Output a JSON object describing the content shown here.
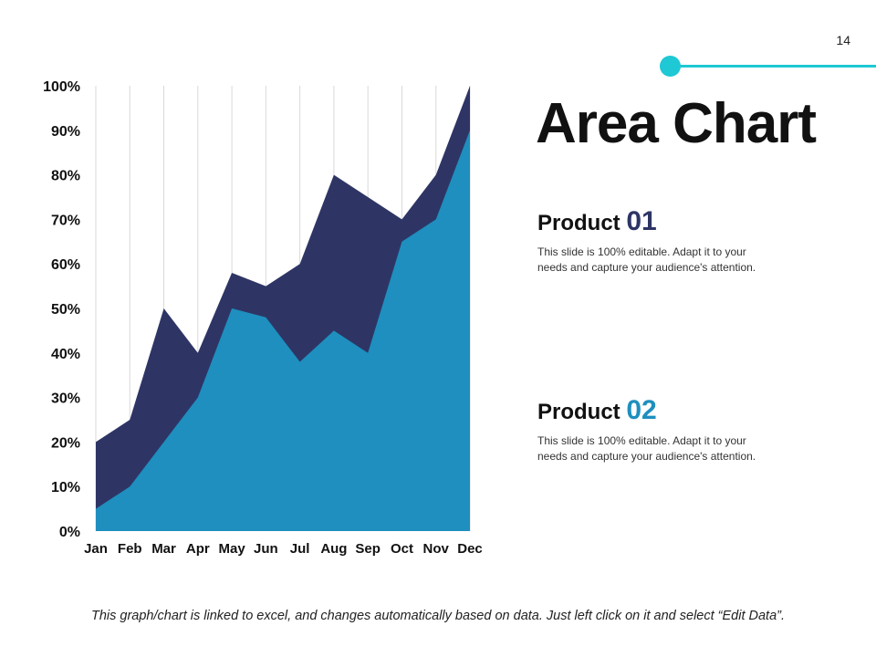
{
  "slide": {
    "page_number": "14"
  },
  "header": {
    "title": "Area Chart"
  },
  "products": [
    {
      "label": "Product",
      "number": "01",
      "description": "This slide is 100% editable. Adapt it to your needs and capture your audience's attention."
    },
    {
      "label": "Product",
      "number": "02",
      "description": "This slide is 100% editable. Adapt it to your needs and capture your audience's attention."
    }
  ],
  "footnote": "This graph/chart is linked to excel, and changes automatically based on data. Just left click on it and select “Edit Data”.",
  "colors": {
    "accent": "#1ec8d4",
    "series_back": "#2e3565",
    "series_front": "#1e8fbe",
    "gridline": "#d9d9d9"
  },
  "chart_data": {
    "type": "area",
    "categories": [
      "Jan",
      "Feb",
      "Mar",
      "Apr",
      "May",
      "Jun",
      "Jul",
      "Aug",
      "Sep",
      "Oct",
      "Nov",
      "Dec"
    ],
    "series": [
      {
        "name": "Product 01",
        "values": [
          20,
          25,
          50,
          40,
          58,
          55,
          60,
          80,
          75,
          70,
          80,
          100
        ]
      },
      {
        "name": "Product 02",
        "values": [
          5,
          10,
          20,
          30,
          50,
          48,
          38,
          45,
          40,
          65,
          70,
          90
        ]
      }
    ],
    "y_ticks": [
      "0%",
      "10%",
      "20%",
      "30%",
      "40%",
      "50%",
      "60%",
      "70%",
      "80%",
      "90%",
      "100%"
    ],
    "ylim": [
      0,
      100
    ],
    "grid": "vertical"
  }
}
